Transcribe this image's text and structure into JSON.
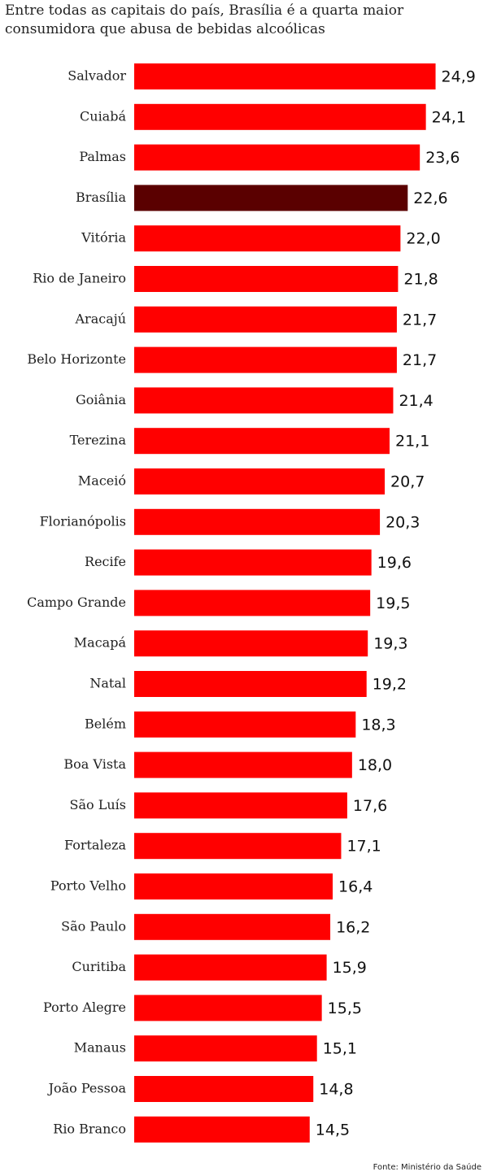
{
  "chart_data": {
    "type": "barh",
    "title": "Entre todas as capitais do país, Brasília é a quarta maior consumidora que abusa de bebidas alcoólicas",
    "source": "Fonte: Ministério da Saúde",
    "categories": [
      "Salvador",
      "Cuiabá",
      "Palmas",
      "Brasília",
      "Vitória",
      "Rio de Janeiro",
      "Aracajú",
      "Belo Horizonte",
      "Goiânia",
      "Terezina",
      "Maceió",
      "Florianópolis",
      "Recife",
      "Campo Grande",
      "Macapá",
      "Natal",
      "Belém",
      "Boa Vista",
      "São Luís",
      "Fortaleza",
      "Porto Velho",
      "São Paulo",
      "Curitiba",
      "Porto Alegre",
      "Manaus",
      "João Pessoa",
      "Rio Branco"
    ],
    "values": [
      24.9,
      24.1,
      23.6,
      22.6,
      22.0,
      21.8,
      21.7,
      21.7,
      21.4,
      21.1,
      20.7,
      20.3,
      19.6,
      19.5,
      19.3,
      19.2,
      18.3,
      18.0,
      17.6,
      17.1,
      16.4,
      16.2,
      15.9,
      15.5,
      15.1,
      14.8,
      14.5
    ],
    "value_labels": [
      "24,9",
      "24,1",
      "23,6",
      "22,6",
      "22,0",
      "21,8",
      "21,7",
      "21,7",
      "21,4",
      "21,1",
      "20,7",
      "20,3",
      "19,6",
      "19,5",
      "19,3",
      "19,2",
      "18,3",
      "18,0",
      "17,6",
      "17,1",
      "16,4",
      "16,2",
      "15,9",
      "15,5",
      "15,1",
      "14,8",
      "14,5"
    ],
    "color": "#ff0000",
    "colors": [
      "#ff0000",
      "#ff0000",
      "#ff0000",
      "#5a0000",
      "#ff0000",
      "#ff0000",
      "#ff0000",
      "#ff0000",
      "#ff0000",
      "#ff0000",
      "#ff0000",
      "#ff0000",
      "#ff0000",
      "#ff0000",
      "#ff0000",
      "#ff0000",
      "#ff0000",
      "#ff0000",
      "#ff0000",
      "#ff0000",
      "#ff0000",
      "#ff0000",
      "#ff0000",
      "#ff0000",
      "#ff0000",
      "#ff0000",
      "#ff0000"
    ],
    "xlim": [
      0,
      25.2
    ]
  }
}
